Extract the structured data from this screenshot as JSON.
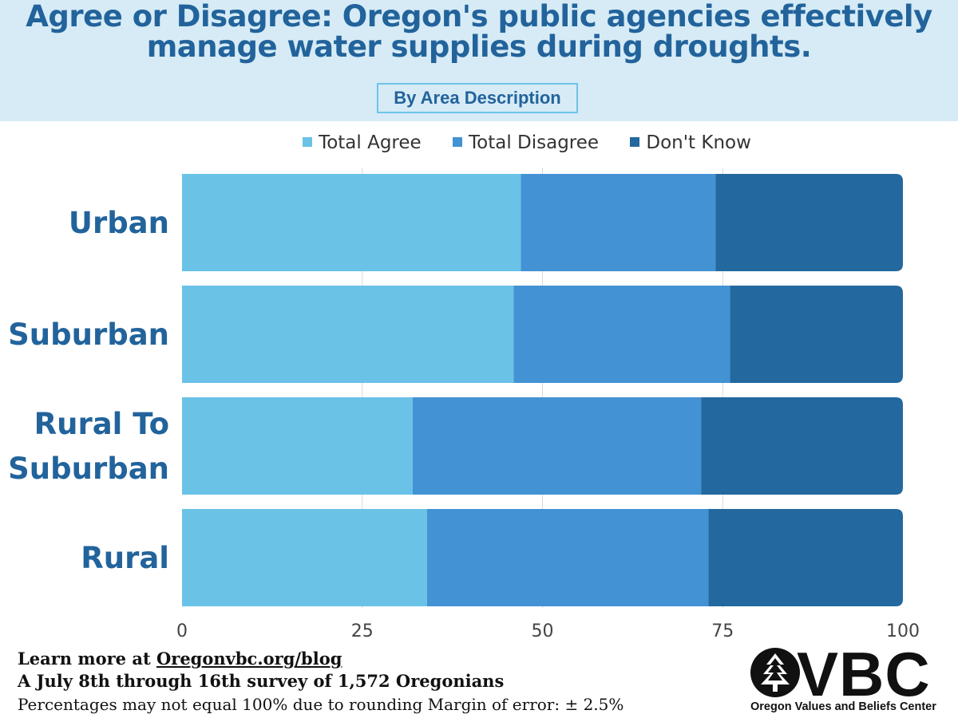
{
  "header": {
    "title_line1": "Agree or Disagree: Oregon's public agencies effectively",
    "title_line2": "manage water supplies during droughts.",
    "subtitle": "By Area Description"
  },
  "colors": {
    "header_bg": "#d6ebf6",
    "title": "#22639b",
    "total_agree": "#6ac2e7",
    "total_disagree": "#4292d4",
    "dont_know": "#23689e"
  },
  "chart_data": {
    "type": "bar",
    "orientation": "horizontal",
    "stacked": true,
    "categories": [
      "Urban",
      "Suburban",
      "Rural To Suburban",
      "Rural"
    ],
    "category_lines": [
      [
        "Urban"
      ],
      [
        "Suburban"
      ],
      [
        "Rural To",
        "Suburban"
      ],
      [
        "Rural"
      ]
    ],
    "series": [
      {
        "name": "Total Agree",
        "color": "#6ac2e7",
        "values": [
          47,
          46,
          32,
          34
        ]
      },
      {
        "name": "Total Disagree",
        "color": "#4292d4",
        "values": [
          27,
          30,
          40,
          39
        ]
      },
      {
        "name": "Don't Know",
        "color": "#23689e",
        "values": [
          26,
          24,
          28,
          27
        ]
      }
    ],
    "xlim": [
      0,
      100
    ],
    "xticks": [
      0,
      25,
      50,
      75,
      100
    ],
    "tick_labels": [
      "0",
      "25",
      "50",
      "75",
      "100"
    ],
    "grid": true,
    "legend_position": "top"
  },
  "footer": {
    "line1_prefix": "Learn more at ",
    "line1_link": "Oregonvbc.org/blog",
    "line2": "A July 8th through 16th survey of 1,572 Oregonians",
    "line3": "Percentages may not equal  100% due to rounding  Margin of error: ± 2.5%"
  },
  "logo": {
    "text": "VBC",
    "subtitle": "Oregon Values and Beliefs Center",
    "icon": "tree-circle-icon"
  }
}
